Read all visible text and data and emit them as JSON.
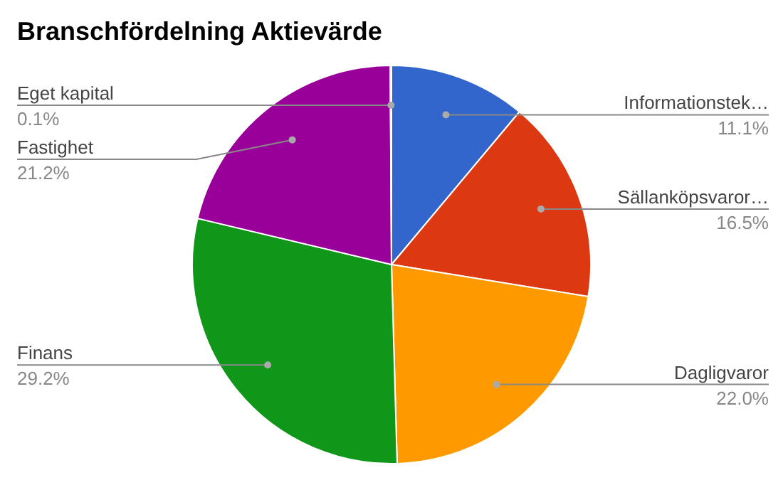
{
  "chart_data": {
    "type": "pie",
    "title": "Branschfördelning Aktievärde",
    "categories": [
      "Informationstek…",
      "Sällanköpsvaror…",
      "Dagligvaror",
      "Finans",
      "Fastighet",
      "Eget kapital"
    ],
    "values": [
      11.1,
      16.5,
      22.0,
      29.2,
      21.2,
      0.1
    ],
    "value_labels": [
      "11.1%",
      "16.5%",
      "22.0%",
      "29.2%",
      "21.2%",
      "0.1%"
    ],
    "colors": [
      "#3366cc",
      "#dc3912",
      "#ff9900",
      "#109618",
      "#990099",
      "#0099c6"
    ],
    "legend": false
  }
}
